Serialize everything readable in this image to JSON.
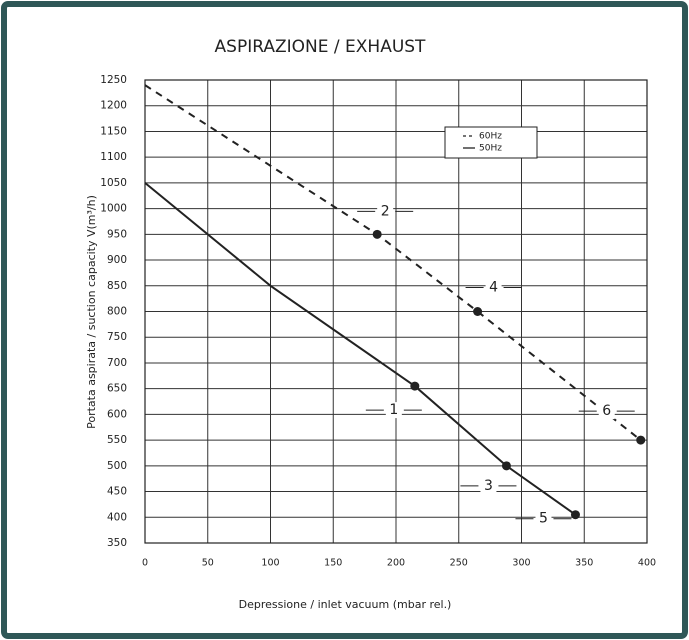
{
  "chart_data": {
    "type": "line",
    "title": "ASPIRAZIONE / EXHAUST",
    "x_label": "Depressione / inlet vacuum (mbar rel.)",
    "y_label": "Portata aspirata / suction capacity V(m³/h)",
    "xlim": [
      0,
      400
    ],
    "ylim": [
      350,
      1250
    ],
    "xticks": [
      0,
      50,
      100,
      150,
      200,
      250,
      300,
      350,
      400
    ],
    "yticks": [
      350,
      400,
      450,
      500,
      550,
      600,
      650,
      700,
      750,
      800,
      850,
      900,
      950,
      1000,
      1050,
      1100,
      1150,
      1200,
      1250
    ],
    "grid": true,
    "legend": "upper right",
    "series": [
      {
        "name": "60Hz",
        "color": "#222222",
        "dashed": true,
        "x": [
          0,
          185,
          265,
          395
        ],
        "values": [
          1240,
          950,
          800,
          550
        ],
        "point_labels": [
          null,
          "2",
          "4",
          "6"
        ]
      },
      {
        "name": "50Hz",
        "color": "#222222",
        "dashed": false,
        "x": [
          0,
          100,
          215,
          288,
          343
        ],
        "values": [
          1050,
          850,
          655,
          500,
          405
        ],
        "point_labels": [
          null,
          null,
          "1",
          "3",
          "5"
        ]
      }
    ]
  }
}
